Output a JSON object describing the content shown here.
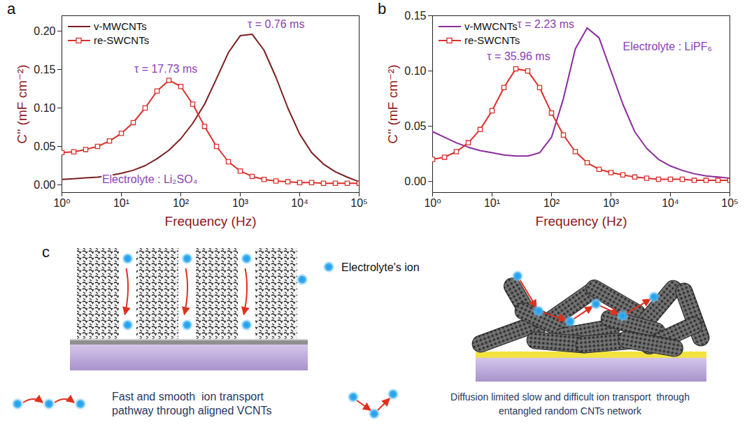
{
  "chart_data": [
    {
      "type": "line",
      "panel_label": "a",
      "x_label": "Frequency (Hz)",
      "y_label": "C'' (mF cm⁻²)",
      "log": "x",
      "grid": false,
      "legend": "upper left",
      "xlim": [
        1,
        100000
      ],
      "xticks": [
        {
          "value": 1,
          "label": "10⁰"
        },
        {
          "value": 10,
          "label": "10¹"
        },
        {
          "value": 100,
          "label": "10²"
        },
        {
          "value": 1000,
          "label": "10³"
        },
        {
          "value": 10000,
          "label": "10⁴"
        },
        {
          "value": 100000,
          "label": "10⁵"
        }
      ],
      "ylim": [
        -0.01,
        0.22
      ],
      "yticks": [
        {
          "value": 0,
          "label": "0.00"
        },
        {
          "value": 0.05,
          "label": "0.05"
        },
        {
          "value": 0.1,
          "label": "0.10"
        },
        {
          "value": 0.15,
          "label": "0.15"
        },
        {
          "value": 0.2,
          "label": "0.20"
        }
      ],
      "x": [
        1,
        1.585,
        2.512,
        3.981,
        6.31,
        10,
        15.85,
        25.12,
        39.81,
        63.1,
        100,
        158.5,
        251.2,
        398.1,
        631,
        1000,
        1585,
        2512,
        3981,
        6310,
        10000,
        15849,
        25119,
        39811,
        63096,
        100000
      ],
      "series": [
        {
          "name": "v-MWCNTs",
          "color": "#7a1f1f",
          "line_style": "solid",
          "values": [
            0.007,
            0.008,
            0.009,
            0.01,
            0.012,
            0.015,
            0.019,
            0.025,
            0.034,
            0.045,
            0.06,
            0.08,
            0.105,
            0.138,
            0.172,
            0.194,
            0.196,
            0.175,
            0.14,
            0.1,
            0.066,
            0.042,
            0.027,
            0.017,
            0.01,
            0.004
          ]
        },
        {
          "name": "re-SWCNTs",
          "color": "#d9302b",
          "line_style": "solid",
          "marker": "square",
          "values": [
            0.042,
            0.043,
            0.046,
            0.05,
            0.057,
            0.067,
            0.081,
            0.1,
            0.122,
            0.136,
            0.128,
            0.105,
            0.076,
            0.05,
            0.03,
            0.018,
            0.011,
            0.007,
            0.005,
            0.004,
            0.003,
            0.003,
            0.002,
            0.002,
            0.002,
            0.002
          ]
        }
      ],
      "annotations": [
        {
          "text": "τ = 0.76 ms",
          "x": 4000,
          "y": 0.209,
          "color": "#8a3fb5"
        },
        {
          "text": "τ = 17.73 ms",
          "x": 56,
          "y": 0.151,
          "color": "#8a3fb5"
        },
        {
          "text": "Electrolyte : Li₂SO₄",
          "x": 30,
          "y": 0.007,
          "color": "#8a3fb5"
        }
      ]
    },
    {
      "type": "line",
      "panel_label": "b",
      "x_label": "Frequency (Hz)",
      "y_label": "C'' (mF cm⁻²)",
      "log": "x",
      "grid": false,
      "legend": "upper left",
      "xlim": [
        1,
        100000
      ],
      "xticks": [
        {
          "value": 1,
          "label": "10⁰"
        },
        {
          "value": 10,
          "label": "10¹"
        },
        {
          "value": 100,
          "label": "10²"
        },
        {
          "value": 1000,
          "label": "10³"
        },
        {
          "value": 10000,
          "label": "10⁴"
        },
        {
          "value": 100000,
          "label": "10⁵"
        }
      ],
      "ylim": [
        -0.01,
        0.15
      ],
      "yticks": [
        {
          "value": 0,
          "label": "0.00"
        },
        {
          "value": 0.05,
          "label": "0.05"
        },
        {
          "value": 0.1,
          "label": "0.10"
        },
        {
          "value": 0.15,
          "label": "0.15"
        }
      ],
      "x": [
        1,
        1.585,
        2.512,
        3.981,
        6.31,
        10,
        15.85,
        25.12,
        39.81,
        63.1,
        100,
        158.5,
        251.2,
        398.1,
        631,
        1000,
        1585,
        2512,
        3981,
        6310,
        10000,
        15849,
        25119,
        39811,
        63096,
        100000
      ],
      "series": [
        {
          "name": "v-MWCNTs",
          "color": "#8b2c9c",
          "line_style": "solid",
          "values": [
            0.045,
            0.04,
            0.035,
            0.031,
            0.028,
            0.026,
            0.024,
            0.023,
            0.023,
            0.026,
            0.04,
            0.075,
            0.12,
            0.139,
            0.13,
            0.1,
            0.07,
            0.045,
            0.03,
            0.02,
            0.014,
            0.01,
            0.007,
            0.005,
            0.004,
            0.003
          ]
        },
        {
          "name": "re-SWCNTs",
          "color": "#d9302b",
          "line_style": "solid",
          "marker": "square",
          "values": [
            0.02,
            0.022,
            0.027,
            0.035,
            0.047,
            0.064,
            0.085,
            0.102,
            0.1,
            0.085,
            0.062,
            0.042,
            0.027,
            0.017,
            0.011,
            0.008,
            0.006,
            0.004,
            0.003,
            0.002,
            0.002,
            0.002,
            0.001,
            0.001,
            0.001,
            0.001
          ]
        }
      ],
      "annotations": [
        {
          "text": "τ = 2.23 ms",
          "x": 80,
          "y": 0.142,
          "color": "#8a3fb5"
        },
        {
          "text": "τ = 35.96 ms",
          "x": 28,
          "y": 0.113,
          "color": "#8a3fb5"
        },
        {
          "text": "Electrolyte : LiPF₆",
          "x": 8900,
          "y": 0.122,
          "color": "#8a3fb5"
        }
      ]
    }
  ],
  "diagram": {
    "panel_label": "c",
    "key_label": "Electrolyte's ion",
    "left_caption": [
      "Fast and smooth  ion transport",
      "pathway through aligned VCNTs"
    ],
    "right_caption": [
      "Diffusion limited slow and difficult ion transport  through",
      "entangled random CNTs network"
    ]
  }
}
